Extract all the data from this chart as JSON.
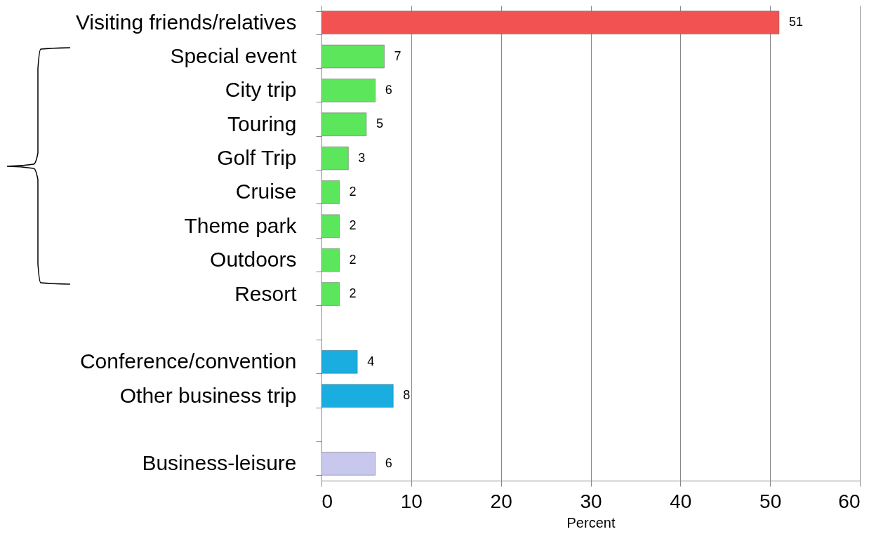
{
  "chart_data": {
    "type": "bar",
    "orientation": "horizontal",
    "xlabel": "Percent",
    "categories": [
      "Visiting friends/relatives",
      "Special event",
      "City trip",
      "Touring",
      "Golf Trip",
      "Cruise",
      "Theme park",
      "Outdoors",
      "Resort",
      null,
      "Conference/convention",
      "Other business trip",
      null,
      "Business-leisure"
    ],
    "values": [
      51,
      7,
      6,
      5,
      3,
      2,
      2,
      2,
      2,
      null,
      4,
      8,
      null,
      6
    ],
    "colors": [
      "#f25252",
      "#5ce65c",
      "#5ce65c",
      "#5ce65c",
      "#5ce65c",
      "#5ce65c",
      "#5ce65c",
      "#5ce65c",
      "#5ce65c",
      null,
      "#1aaee0",
      "#1aaee0",
      null,
      "#c8c8ee"
    ],
    "xlim": [
      0,
      60
    ],
    "xticks": [
      0,
      10,
      20,
      30,
      40,
      50,
      60
    ],
    "grid": "x",
    "data_labels": true
  }
}
